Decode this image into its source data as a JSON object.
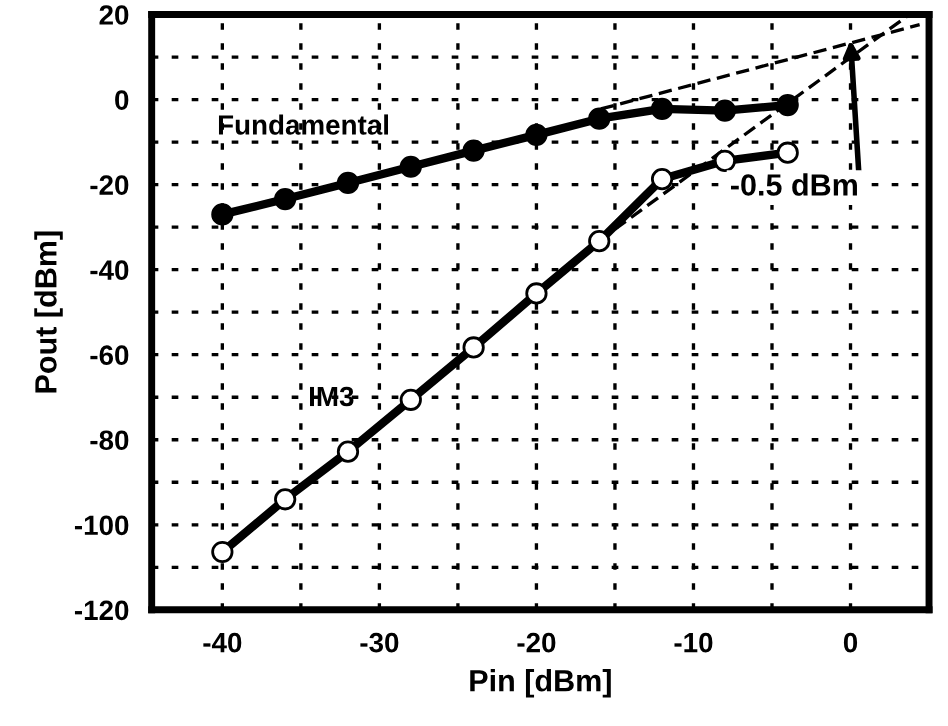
{
  "chart_data": {
    "type": "line",
    "xlabel": "Pin [dBm]",
    "ylabel": "Pout [dBm]",
    "xlim": [
      -44.5,
      5
    ],
    "ylim": [
      -120,
      20
    ],
    "xticks": [
      -40,
      {
        "value": -35,
        "label": null
      },
      -30,
      {
        "value": -25,
        "label": null
      },
      -20,
      {
        "value": -15,
        "label": null
      },
      -10,
      {
        "value": -5,
        "label": null
      },
      0
    ],
    "yticks": [
      -120,
      {
        "value": -110,
        "label": null
      },
      -100,
      {
        "value": -90,
        "label": null
      },
      -80,
      {
        "value": -70,
        "label": null
      },
      -60,
      {
        "value": -50,
        "label": null
      },
      -40,
      {
        "value": -30,
        "label": null
      },
      -20,
      {
        "value": -10,
        "label": null
      },
      0,
      {
        "value": 10,
        "label": null
      },
      20
    ],
    "grid": true,
    "marker": "circle",
    "line_style": "solid",
    "x": [
      -40,
      -36,
      -32,
      -28,
      -24,
      -20,
      -16,
      -12,
      -8,
      -4
    ],
    "series": [
      {
        "name": "Fundamental",
        "color": "#000000",
        "values": [
          -27,
          -23.4,
          -19.6,
          -15.8,
          -12,
          -8.3,
          -4.5,
          -2.2,
          -2.6,
          -1.3
        ]
      },
      {
        "name": "IM3",
        "color": "#000000",
        "values": [
          -106.4,
          -94,
          -82.8,
          -70.6,
          -58.3,
          -45.6,
          -33.3,
          -18.7,
          -14.4,
          -12.5
        ]
      },
      {
        "type": "line",
        "x": [
          -15.9,
          4.4
        ],
        "values": [
          -2.2,
          17.6
        ],
        "color": "#000000",
        "line_style": "dashed",
        "marker": "none"
      },
      {
        "type": "line",
        "x": [
          -15,
          3.75
        ],
        "values": [
          -30.5,
          20
        ],
        "color": "#000000",
        "line_style": "dashed",
        "marker": "none"
      }
    ],
    "annotations": [
      {
        "text": "-0.5 dBm",
        "x": 0,
        "y": 14
      }
    ]
  }
}
